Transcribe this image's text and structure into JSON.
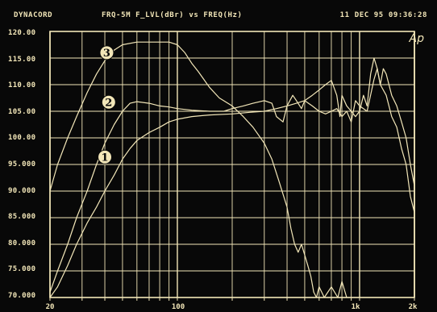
{
  "header": {
    "left": "DYNACORD",
    "center": "FRQ-5M F_LVL(dBr) vs FREQ(Hz)",
    "right": "11 DEC 95 09:36:28"
  },
  "logo_text": "Ap",
  "colors": {
    "background": "#080808",
    "grid": "#f2e6b8",
    "trace": "#f2e6b8"
  },
  "chart_data": {
    "type": "line",
    "title": "FRQ-5M F_LVL(dBr) vs FREQ(Hz)",
    "xlabel": "FREQ(Hz)",
    "ylabel": "F_LVL(dBr)",
    "x_scale": "log",
    "xlim": [
      20,
      2000
    ],
    "ylim": [
      70,
      120
    ],
    "grid": true,
    "y_ticks": [
      70,
      75,
      80,
      85,
      90,
      95,
      100,
      105,
      110,
      115,
      120
    ],
    "y_tick_labels": [
      "70.000",
      "75.000",
      "80.000",
      "85.000",
      "90.000",
      "95.000",
      "100.00",
      "105.00",
      "110.00",
      "115.00",
      "120.00"
    ],
    "x_tick_labels": [
      {
        "value": 20,
        "label": "20"
      },
      {
        "value": 100,
        "label": "100"
      },
      {
        "value": 1000,
        "label": "1k"
      },
      {
        "value": 2000,
        "label": "2k"
      }
    ],
    "series": [
      {
        "marker": "1",
        "marker_at": [
          40,
          96.4
        ],
        "points": [
          [
            20,
            70
          ],
          [
            22,
            72
          ],
          [
            25,
            76
          ],
          [
            28,
            80
          ],
          [
            32,
            84
          ],
          [
            36,
            87
          ],
          [
            40,
            90
          ],
          [
            45,
            93
          ],
          [
            50,
            96
          ],
          [
            55,
            98
          ],
          [
            60,
            99.5
          ],
          [
            70,
            101
          ],
          [
            80,
            102
          ],
          [
            90,
            103
          ],
          [
            100,
            103.5
          ],
          [
            120,
            104
          ],
          [
            150,
            104.3
          ],
          [
            200,
            104.5
          ],
          [
            250,
            104.8
          ],
          [
            300,
            105
          ],
          [
            350,
            105.5
          ],
          [
            400,
            106
          ],
          [
            450,
            106.5
          ],
          [
            500,
            107
          ],
          [
            550,
            108
          ],
          [
            600,
            109
          ],
          [
            650,
            110
          ],
          [
            700,
            110.8
          ],
          [
            750,
            108
          ],
          [
            780,
            104
          ],
          [
            800,
            108
          ],
          [
            850,
            106
          ],
          [
            900,
            105
          ],
          [
            950,
            104
          ],
          [
            1000,
            105
          ],
          [
            1050,
            108
          ],
          [
            1100,
            106
          ],
          [
            1150,
            112
          ],
          [
            1200,
            115
          ],
          [
            1250,
            113
          ],
          [
            1300,
            110
          ],
          [
            1350,
            113
          ],
          [
            1400,
            112
          ],
          [
            1450,
            110
          ],
          [
            1500,
            108
          ],
          [
            1600,
            106
          ],
          [
            1700,
            103
          ],
          [
            1800,
            100
          ],
          [
            1900,
            95
          ],
          [
            2000,
            91
          ]
        ]
      },
      {
        "marker": "2",
        "marker_at": [
          42,
          106.7
        ],
        "points": [
          [
            20,
            71
          ],
          [
            22,
            75
          ],
          [
            25,
            80
          ],
          [
            28,
            85
          ],
          [
            32,
            90
          ],
          [
            36,
            95
          ],
          [
            40,
            99
          ],
          [
            45,
            102.5
          ],
          [
            50,
            105
          ],
          [
            55,
            106.5
          ],
          [
            60,
            106.8
          ],
          [
            70,
            106.5
          ],
          [
            80,
            106
          ],
          [
            90,
            105.8
          ],
          [
            100,
            105.5
          ],
          [
            120,
            105.2
          ],
          [
            150,
            105
          ],
          [
            180,
            105
          ],
          [
            200,
            105.5
          ],
          [
            230,
            106
          ],
          [
            260,
            106.5
          ],
          [
            300,
            107
          ],
          [
            330,
            106.5
          ],
          [
            350,
            104
          ],
          [
            380,
            103
          ],
          [
            400,
            106
          ],
          [
            430,
            108
          ],
          [
            450,
            107
          ],
          [
            480,
            105.5
          ],
          [
            500,
            107
          ],
          [
            550,
            106
          ],
          [
            600,
            105
          ],
          [
            650,
            104.5
          ],
          [
            700,
            105
          ],
          [
            750,
            105.5
          ],
          [
            800,
            104
          ],
          [
            850,
            105
          ],
          [
            900,
            103
          ],
          [
            950,
            107
          ],
          [
            1000,
            106
          ],
          [
            1100,
            105
          ],
          [
            1200,
            111
          ],
          [
            1250,
            113
          ],
          [
            1300,
            110
          ],
          [
            1400,
            108
          ],
          [
            1500,
            104
          ],
          [
            1600,
            102
          ],
          [
            1700,
            98
          ],
          [
            1800,
            95
          ],
          [
            1900,
            89
          ],
          [
            2000,
            86
          ]
        ]
      },
      {
        "marker": "3",
        "marker_at": [
          41,
          116
        ],
        "points": [
          [
            20,
            90
          ],
          [
            22,
            95
          ],
          [
            25,
            100
          ],
          [
            28,
            104
          ],
          [
            32,
            108.5
          ],
          [
            36,
            112
          ],
          [
            40,
            114.5
          ],
          [
            45,
            116.5
          ],
          [
            50,
            117.5
          ],
          [
            60,
            118
          ],
          [
            70,
            118
          ],
          [
            80,
            118
          ],
          [
            90,
            118
          ],
          [
            100,
            117.5
          ],
          [
            110,
            116
          ],
          [
            120,
            114
          ],
          [
            130,
            112.5
          ],
          [
            150,
            109.5
          ],
          [
            170,
            107.5
          ],
          [
            200,
            106
          ],
          [
            230,
            104
          ],
          [
            260,
            102
          ],
          [
            300,
            99
          ],
          [
            330,
            96
          ],
          [
            360,
            92
          ],
          [
            400,
            87
          ],
          [
            420,
            83
          ],
          [
            440,
            80
          ],
          [
            460,
            78.5
          ],
          [
            480,
            80
          ],
          [
            500,
            78
          ],
          [
            520,
            76
          ],
          [
            540,
            74
          ],
          [
            560,
            71
          ],
          [
            580,
            70
          ],
          [
            600,
            72
          ],
          [
            640,
            70
          ],
          [
            700,
            72
          ],
          [
            760,
            70
          ],
          [
            800,
            73
          ],
          [
            850,
            70
          ]
        ]
      }
    ]
  }
}
